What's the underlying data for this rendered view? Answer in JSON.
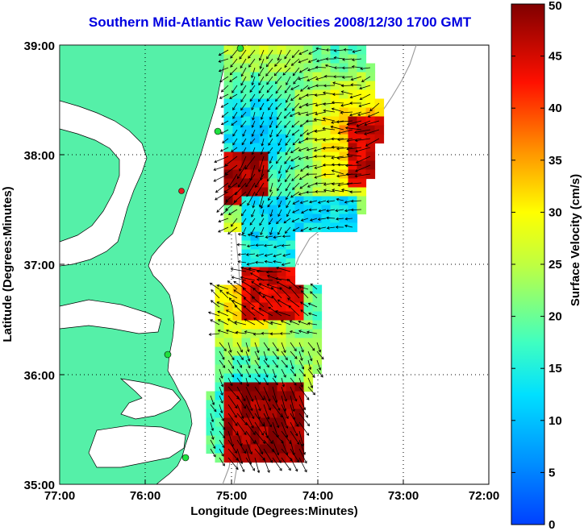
{
  "title": "Southern Mid-Atlantic Raw Velocities 2008/12/30 1700 GMT",
  "axes": {
    "xlabel": "Longitude (Degrees:Minutes)",
    "ylabel": "Latitude (Degrees:Minutes)",
    "x_ticks": [
      "77:00",
      "76:00",
      "75:00",
      "74:00",
      "73:00",
      "72:00"
    ],
    "y_ticks": [
      "39:00",
      "38:00",
      "37:00",
      "36:00",
      "35:00"
    ],
    "xlim": [
      -77,
      -72
    ],
    "ylim": [
      35,
      39
    ]
  },
  "colorbar": {
    "label": "Surface Velocity (cm/s)",
    "ticks": [
      "50",
      "45",
      "40",
      "35",
      "30",
      "25",
      "20",
      "15",
      "10",
      "5",
      "0"
    ],
    "range": [
      0,
      50
    ]
  },
  "colors": {
    "land": "#55f0a8",
    "title": "#0000e0",
    "station": "#20e040",
    "station_alt": "#e02020"
  }
}
